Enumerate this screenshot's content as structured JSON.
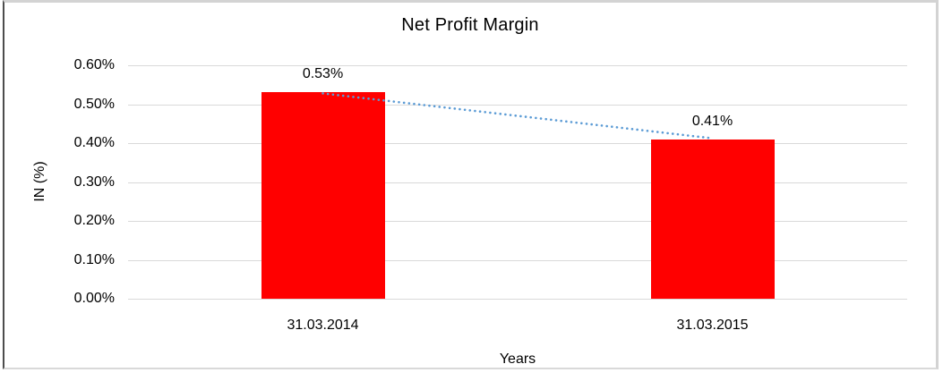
{
  "chart_data": {
    "type": "bar",
    "title": "Net Profit Margin",
    "xlabel": "Years",
    "ylabel": "IN (%)",
    "categories": [
      "31.03.2014",
      "31.03.2015"
    ],
    "values": [
      0.53,
      0.41
    ],
    "data_labels": [
      "0.53%",
      "0.41%"
    ],
    "yticks": [
      {
        "value": 0.6,
        "label": "0.60%"
      },
      {
        "value": 0.5,
        "label": "0.50%"
      },
      {
        "value": 0.4,
        "label": "0.40%"
      },
      {
        "value": 0.3,
        "label": "0.30%"
      },
      {
        "value": 0.2,
        "label": "0.20%"
      },
      {
        "value": 0.1,
        "label": "0.10%"
      },
      {
        "value": 0.0,
        "label": "0.00%"
      }
    ],
    "ylim": [
      0,
      0.6
    ],
    "grid": true,
    "legend": "none",
    "trendline": {
      "style": "dotted",
      "from_value": 0.53,
      "to_value": 0.41
    },
    "colors": {
      "bar": "#ff0000",
      "trendline": "#5b9bd5",
      "gridline": "#d9d9d9",
      "text": "#000000"
    }
  }
}
